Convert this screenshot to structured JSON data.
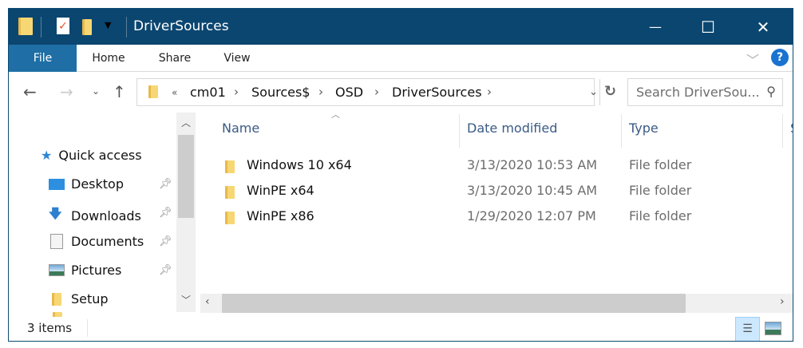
{
  "window": {
    "title": "DriverSources",
    "controls": {
      "minimize": "—",
      "maximize": "☐",
      "close": "✕"
    }
  },
  "ribbon": {
    "tabs": [
      "File",
      "Home",
      "Share",
      "View"
    ],
    "help": "?"
  },
  "address": {
    "prefix": "«",
    "crumbs": [
      "cm01",
      "Sources$",
      "OSD",
      "DriverSources"
    ]
  },
  "search": {
    "placeholder": "Search DriverSou..."
  },
  "nav": {
    "items": [
      {
        "label": "Quick access",
        "icon": "star-icon"
      },
      {
        "label": "Desktop",
        "icon": "desktop-icon",
        "pinned": true
      },
      {
        "label": "Downloads",
        "icon": "download-icon",
        "pinned": true
      },
      {
        "label": "Documents",
        "icon": "documents-icon",
        "pinned": true
      },
      {
        "label": "Pictures",
        "icon": "pictures-icon",
        "pinned": true
      },
      {
        "label": "Setup",
        "icon": "folder-icon"
      }
    ]
  },
  "columns": [
    "Name",
    "Date modified",
    "Type",
    "S"
  ],
  "files": [
    {
      "name": "Windows 10 x64",
      "date": "3/13/2020 10:53 AM",
      "type": "File folder"
    },
    {
      "name": "WinPE x64",
      "date": "3/13/2020 10:45 AM",
      "type": "File folder"
    },
    {
      "name": "WinPE x86",
      "date": "1/29/2020 12:07 PM",
      "type": "File folder"
    }
  ],
  "status": {
    "count": "3 items"
  },
  "colors": {
    "titlebar": "#0b4670",
    "file_tab": "#1f6fa6",
    "header_text": "#3a5a85"
  }
}
